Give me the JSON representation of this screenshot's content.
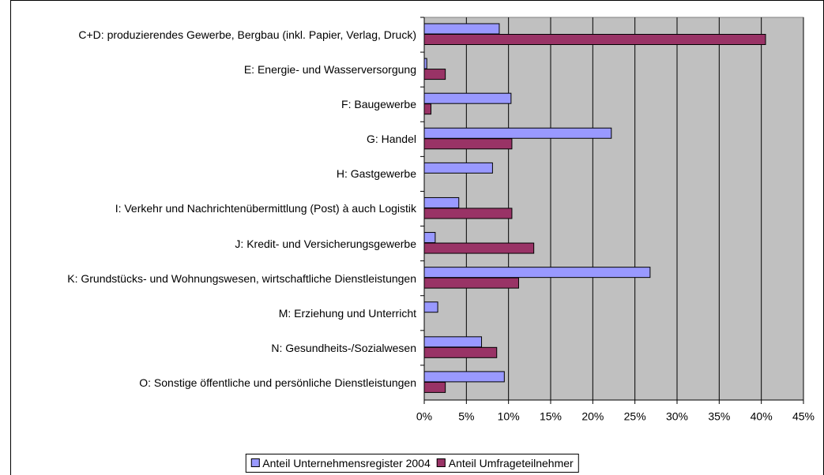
{
  "chart_data": {
    "type": "hbar",
    "categories": [
      "C+D: produzierendes Gewerbe, Bergbau (inkl. Papier, Verlag, Druck)",
      "E: Energie- und Wasserversorgung",
      "F: Baugewerbe",
      "G: Handel",
      "H: Gastgewerbe",
      "I: Verkehr und Nachrichtenübermittlung (Post) à auch Logistik",
      "J: Kredit- und Versicherungsgewerbe",
      "K: Grundstücks- und Wohnungswesen, wirtschaftliche Dienstleistungen",
      "M: Erziehung und Unterricht",
      "N: Gesundheits-/Sozialwesen",
      "O: Sonstige öffentliche und persönliche Dienstleistungen"
    ],
    "series": [
      {
        "name": "Anteil Unternehmensregister 2004",
        "color": "#9999ff",
        "values": [
          8.9,
          0.3,
          10.3,
          22.2,
          8.1,
          4.1,
          1.3,
          26.8,
          1.6,
          6.8,
          9.5
        ]
      },
      {
        "name": "Anteil Umfrageteilnehmer",
        "color": "#993366",
        "values": [
          40.5,
          2.5,
          0.8,
          10.4,
          0,
          10.4,
          13.0,
          11.2,
          0,
          8.6,
          2.5
        ]
      }
    ],
    "xlim": [
      0,
      45
    ],
    "xticks": [
      {
        "value": 0,
        "label": "0%"
      },
      {
        "value": 5,
        "label": "5%"
      },
      {
        "value": 10,
        "label": "10%"
      },
      {
        "value": 15,
        "label": "15%"
      },
      {
        "value": 20,
        "label": "20%"
      },
      {
        "value": 25,
        "label": "25%"
      },
      {
        "value": 30,
        "label": "30%"
      },
      {
        "value": 35,
        "label": "35%"
      },
      {
        "value": 40,
        "label": "40%"
      },
      {
        "value": 45,
        "label": "45%"
      }
    ],
    "grid": true,
    "legend": "bottom",
    "plot_background": "#c0c0c0"
  }
}
